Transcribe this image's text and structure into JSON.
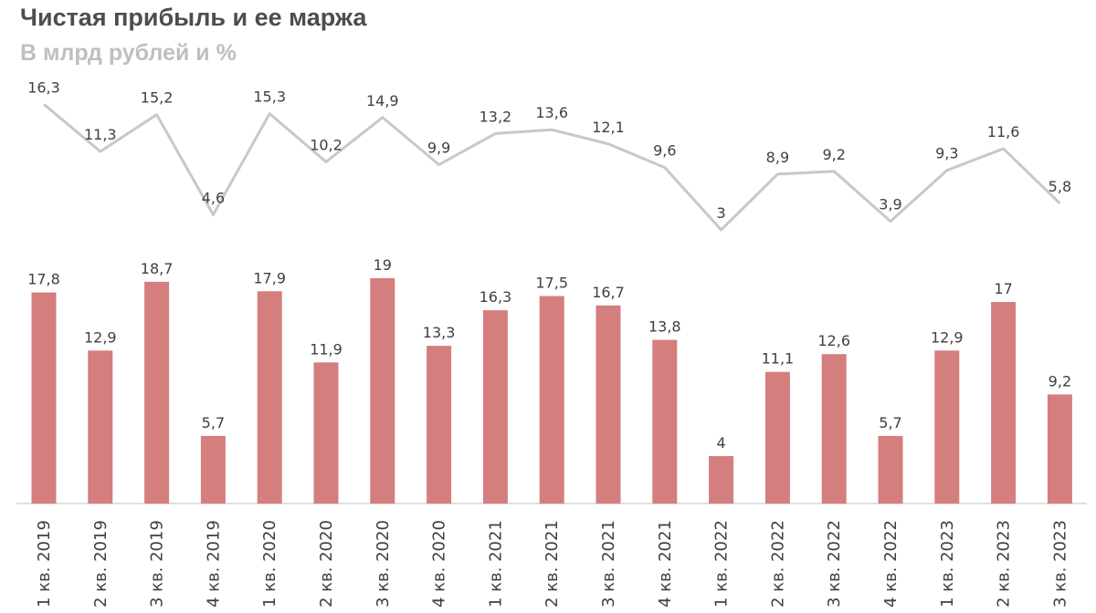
{
  "chart_data": {
    "type": "bar",
    "title": "Чистая прибыль и ее маржа",
    "subtitle": "В млрд рублей и %",
    "categories": [
      "1 кв. 2019",
      "2 кв. 2019",
      "3 кв. 2019",
      "4 кв. 2019",
      "1 кв. 2020",
      "2 кв. 2020",
      "3 кв. 2020",
      "4 кв. 2020",
      "1 кв. 2021",
      "2 кв. 2021",
      "3 кв. 2021",
      "4 кв. 2021",
      "1 кв. 2022",
      "2 кв. 2022",
      "3 кв. 2022",
      "4 кв. 2022",
      "1 кв. 2023",
      "2 кв. 2023",
      "3 кв. 2023"
    ],
    "series": [
      {
        "type": "bar",
        "values": [
          17.8,
          12.9,
          18.7,
          5.7,
          17.9,
          11.9,
          19,
          13.3,
          16.3,
          17.5,
          16.7,
          13.8,
          4,
          11.1,
          12.6,
          5.7,
          12.9,
          17,
          9.2
        ],
        "labels": [
          "17,8",
          "12,9",
          "18,7",
          "5,7",
          "17,9",
          "11,9",
          "19",
          "13,3",
          "16,3",
          "17,5",
          "16,7",
          "13,8",
          "4",
          "11,1",
          "12,6",
          "5,7",
          "12,9",
          "17",
          "9,2"
        ],
        "color": "#d47e7e"
      },
      {
        "type": "line",
        "values": [
          16.3,
          11.3,
          15.2,
          4.6,
          15.3,
          10.2,
          14.9,
          9.9,
          13.2,
          13.6,
          12.1,
          9.6,
          3,
          8.9,
          9.2,
          3.9,
          9.3,
          11.6,
          5.8
        ],
        "labels": [
          "16,3",
          "11,3",
          "15,2",
          "4,6",
          "15,3",
          "10,2",
          "14,9",
          "9,9",
          "13,2",
          "13,6",
          "12,1",
          "9,6",
          "3",
          "8,9",
          "9,2",
          "3,9",
          "9,3",
          "11,6",
          "5,8"
        ],
        "color": "#c8c8c8"
      }
    ],
    "grid": false,
    "legend": "none"
  }
}
